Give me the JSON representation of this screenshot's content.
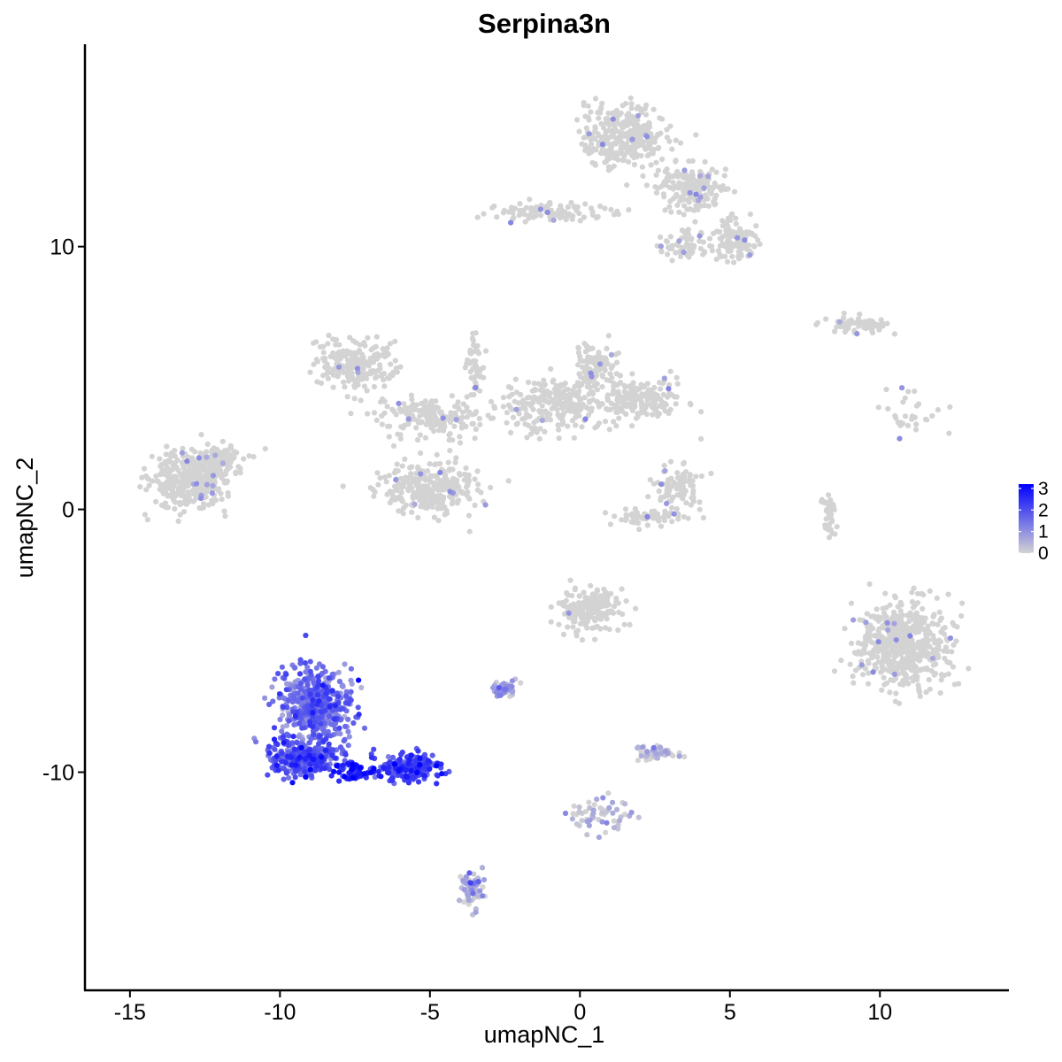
{
  "chart_data": {
    "type": "scatter",
    "title": "Serpina3n",
    "xlabel": "umapNC_1",
    "ylabel": "umapNC_2",
    "xlim": [
      -16.5,
      14.3
    ],
    "ylim": [
      -18.3,
      17.7
    ],
    "xticks": [
      -15,
      -10,
      -5,
      0,
      5,
      10
    ],
    "xtick_labels": [
      "-15",
      "-10",
      "-5",
      "0",
      "5",
      "10"
    ],
    "yticks": [
      -10,
      0,
      10
    ],
    "ytick_labels": [
      "-10",
      "0",
      "10"
    ],
    "grid": false,
    "colors": {
      "low": "#d3d3d3",
      "high": "#0000ff",
      "axis": "#000000"
    },
    "legend": {
      "position": "right",
      "type": "colorbar",
      "labels": [
        "3",
        "2",
        "1",
        "0"
      ],
      "values": [
        3,
        2,
        1,
        0
      ],
      "range": [
        0,
        3.2
      ]
    },
    "clusters": [
      {
        "cx": -13,
        "cy": 1.2,
        "sx": 1.2,
        "sy": 1.0,
        "n": 380,
        "expr": 0
      },
      {
        "cx": -12.0,
        "cy": 2.0,
        "sx": 0.6,
        "sy": 0.4,
        "n": 60,
        "expr": 0
      },
      {
        "cx": -7.5,
        "cy": 5.5,
        "sx": 1.2,
        "sy": 0.8,
        "n": 220,
        "expr": 0
      },
      {
        "cx": -5.0,
        "cy": 3.5,
        "sx": 1.6,
        "sy": 0.7,
        "n": 180,
        "expr": 0
      },
      {
        "cx": -5.0,
        "cy": 0.8,
        "sx": 1.4,
        "sy": 0.9,
        "n": 280,
        "expr": 0.03
      },
      {
        "cx": -3.5,
        "cy": 5.5,
        "sx": 0.4,
        "sy": 1.2,
        "n": 50,
        "expr": 0
      },
      {
        "cx": -1.0,
        "cy": 4.0,
        "sx": 1.4,
        "sy": 0.9,
        "n": 240,
        "expr": 0.03
      },
      {
        "cx": 0.5,
        "cy": 5.5,
        "sx": 0.6,
        "sy": 0.8,
        "n": 100,
        "expr": 0.02
      },
      {
        "cx": 1.8,
        "cy": 4.2,
        "sx": 1.4,
        "sy": 0.7,
        "n": 200,
        "expr": 0.03
      },
      {
        "cx": 1.5,
        "cy": 14.2,
        "sx": 1.2,
        "sy": 1.1,
        "n": 320,
        "expr": 0.02
      },
      {
        "cx": 3.8,
        "cy": 12.2,
        "sx": 1.0,
        "sy": 0.8,
        "n": 180,
        "expr": 0.02
      },
      {
        "cx": 5.2,
        "cy": 10.2,
        "sx": 0.7,
        "sy": 0.7,
        "n": 120,
        "expr": 0.02
      },
      {
        "cx": -1.0,
        "cy": 11.3,
        "sx": 1.6,
        "sy": 0.3,
        "n": 100,
        "expr": 0.02
      },
      {
        "cx": 3.5,
        "cy": 10.0,
        "sx": 0.8,
        "sy": 0.5,
        "n": 60,
        "expr": 0
      },
      {
        "cx": 9.2,
        "cy": 7.0,
        "sx": 1.0,
        "sy": 0.3,
        "n": 60,
        "expr": 0.02
      },
      {
        "cx": 11.0,
        "cy": 3.5,
        "sx": 1.2,
        "sy": 0.8,
        "n": 30,
        "expr": 0
      },
      {
        "cx": 3.3,
        "cy": 0.8,
        "sx": 0.7,
        "sy": 0.8,
        "n": 100,
        "expr": 0.03
      },
      {
        "cx": 2.2,
        "cy": -0.3,
        "sx": 1.0,
        "sy": 0.3,
        "n": 60,
        "expr": 0.03
      },
      {
        "cx": 8.3,
        "cy": -0.3,
        "sx": 0.2,
        "sy": 0.9,
        "n": 40,
        "expr": 0
      },
      {
        "cx": 10.8,
        "cy": -5.2,
        "sx": 1.4,
        "sy": 1.5,
        "n": 540,
        "expr": 0.02
      },
      {
        "cx": 0.3,
        "cy": -3.8,
        "sx": 0.9,
        "sy": 0.8,
        "n": 180,
        "expr": 0.05
      },
      {
        "cx": -2.5,
        "cy": -6.8,
        "sx": 0.4,
        "sy": 0.3,
        "n": 60,
        "expr": 0.55
      },
      {
        "cx": 2.5,
        "cy": -9.3,
        "sx": 0.6,
        "sy": 0.3,
        "n": 60,
        "expr": 0.12
      },
      {
        "cx": 0.7,
        "cy": -11.6,
        "sx": 1.0,
        "sy": 0.6,
        "n": 60,
        "expr": 0.25
      },
      {
        "cx": -3.6,
        "cy": -14.5,
        "sx": 0.4,
        "sy": 0.6,
        "n": 60,
        "expr": 0.3
      },
      {
        "cx": -8.8,
        "cy": -7.5,
        "sx": 1.1,
        "sy": 1.3,
        "n": 520,
        "expr": 1.45
      },
      {
        "cx": -9.2,
        "cy": -9.5,
        "sx": 1.0,
        "sy": 0.6,
        "n": 320,
        "expr": 1.75
      },
      {
        "cx": -5.7,
        "cy": -9.8,
        "sx": 1.0,
        "sy": 0.45,
        "n": 200,
        "expr": 2.05
      },
      {
        "cx": -7.5,
        "cy": -10.0,
        "sx": 0.5,
        "sy": 0.3,
        "n": 60,
        "expr": 2.6
      }
    ]
  }
}
